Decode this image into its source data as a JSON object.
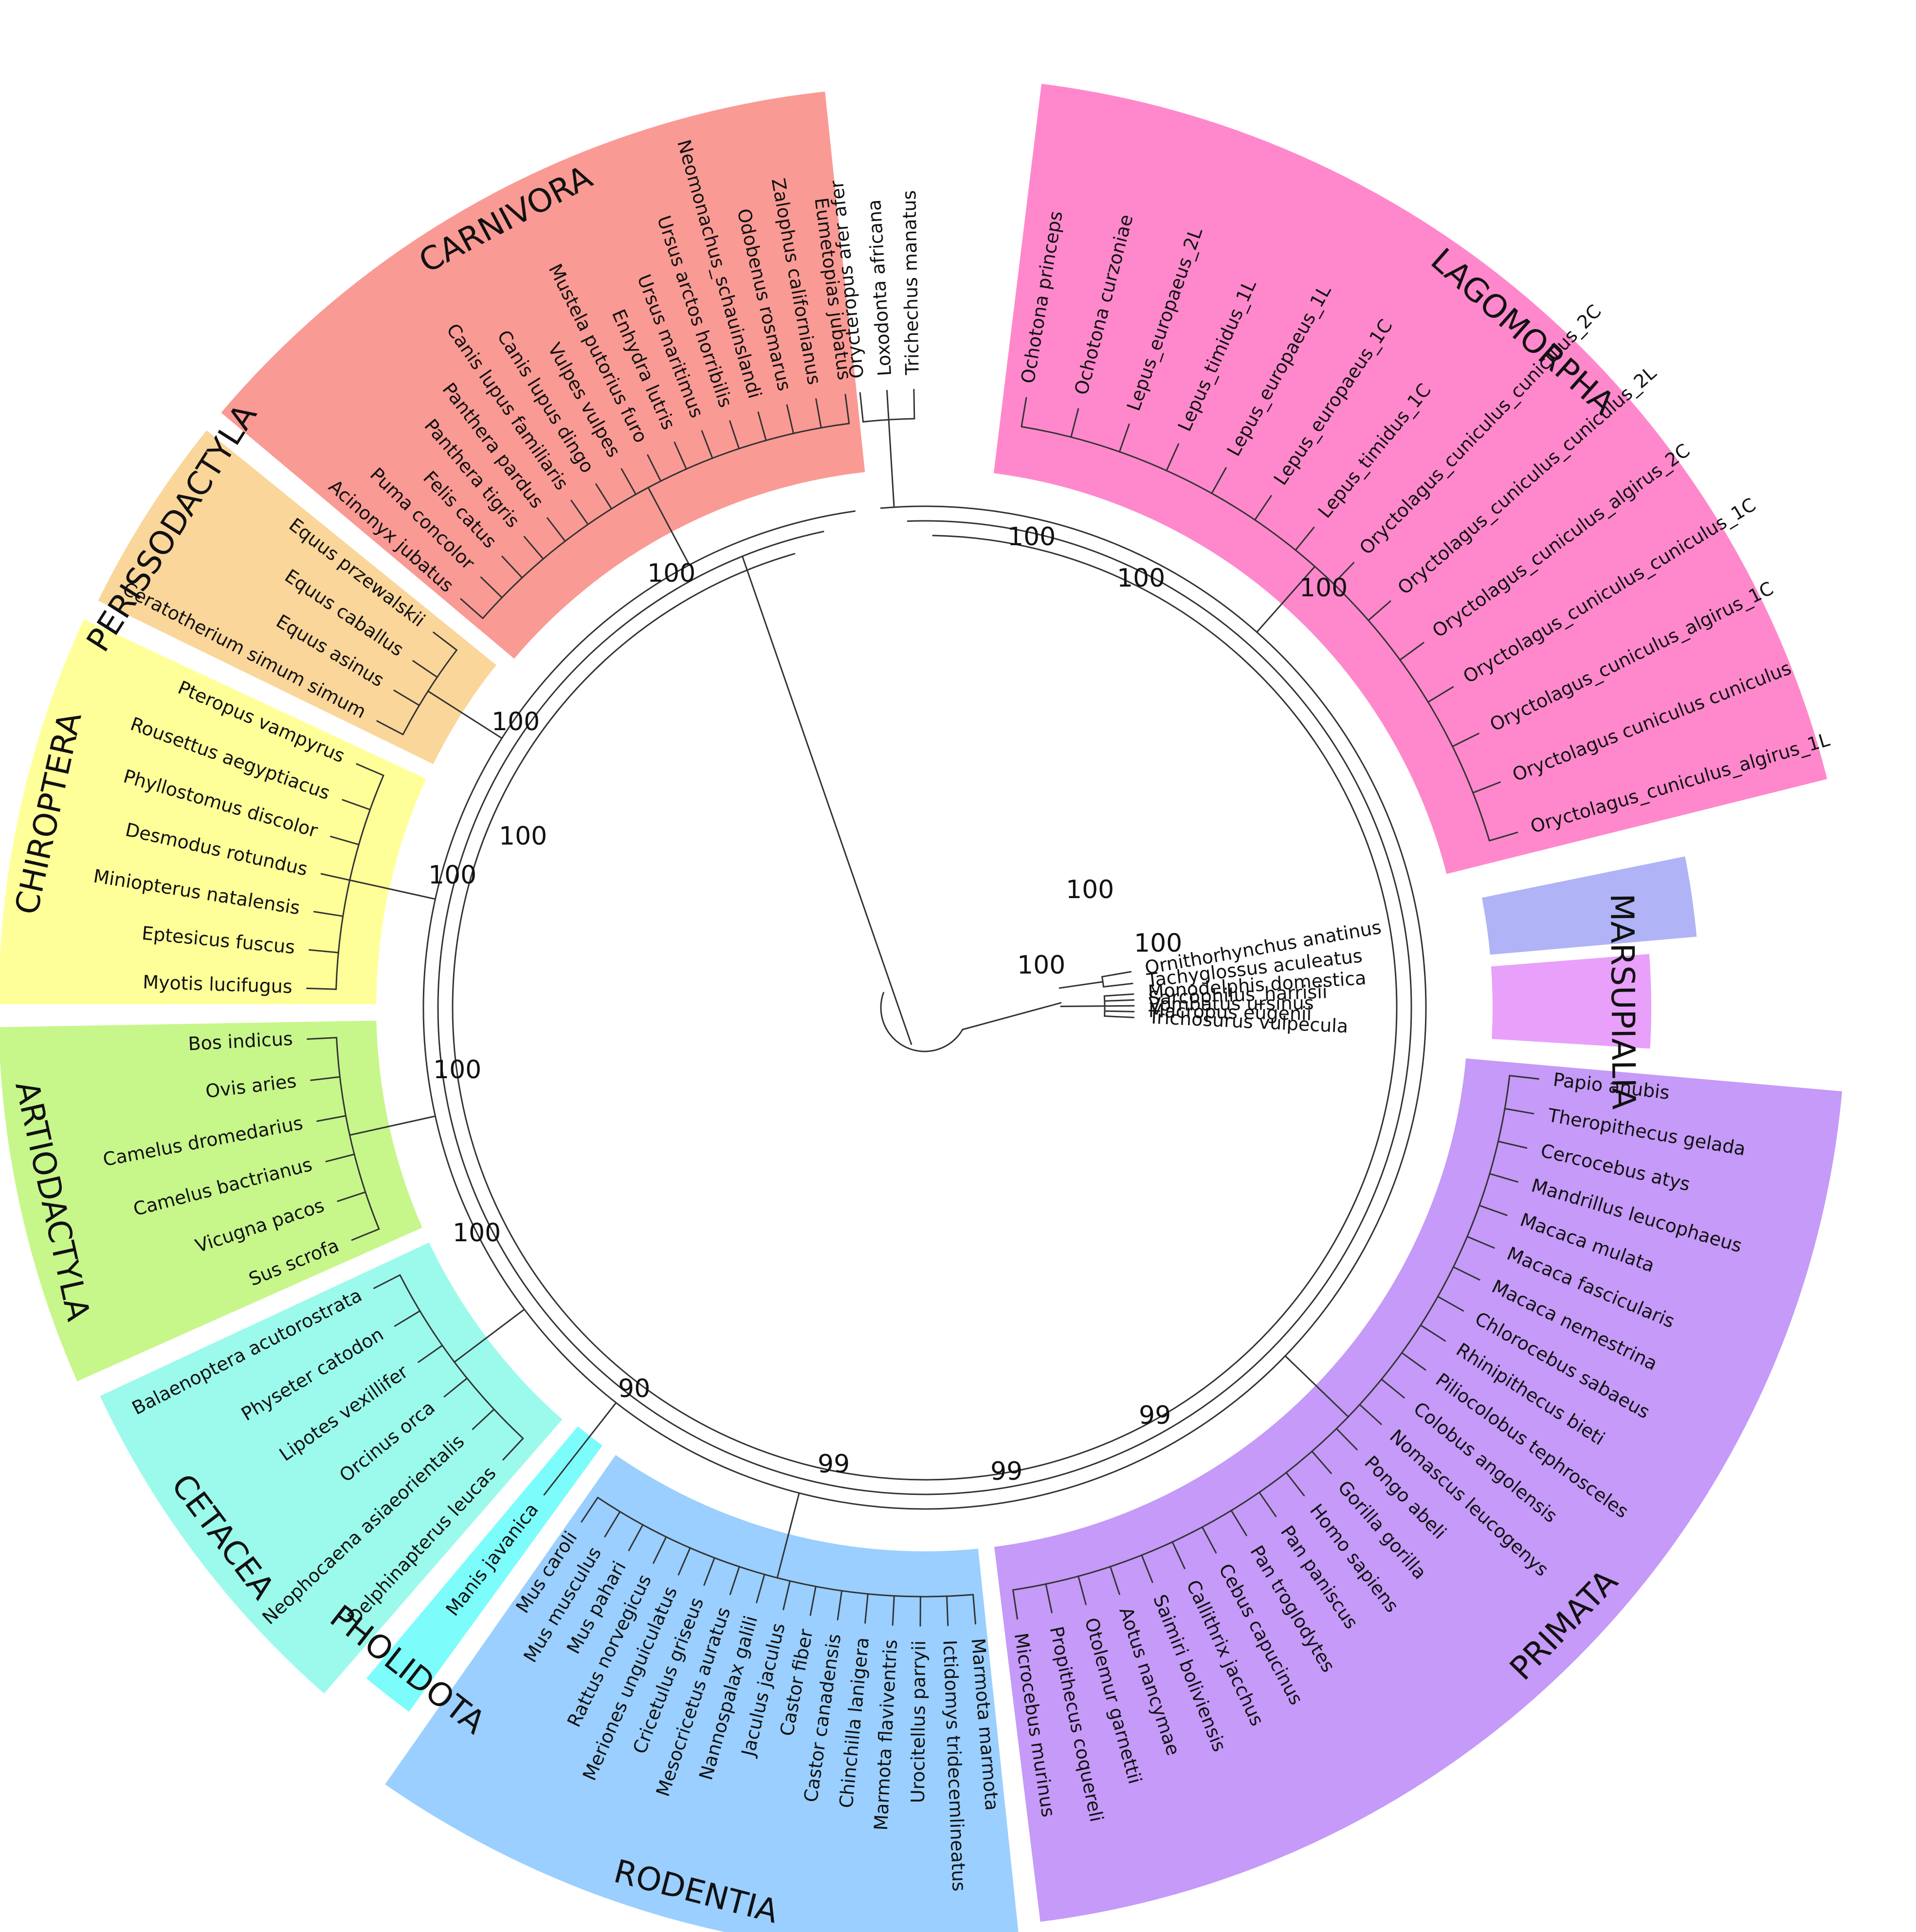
{
  "tree": {
    "colors": {
      "LAGOMORPHA": "#ff88cc",
      "CARNIVORA": "#fa9a94",
      "PERISSODACTYLA": "#fad69a",
      "CHIROPTERA": "#feff99",
      "ARTIODACTYLA": "#c7f68a",
      "CETACEA": "#9bfaeb",
      "PHOLIDOTA": "#7cfdfc",
      "RODENTIA": "#9acfff",
      "PRIMATA": "#c59af8",
      "MARSUPIALIA": "#e8a0fa",
      "MONOTREMES": "#b0b3f6"
    },
    "clades": [
      {
        "name": "LAGOMORPHA",
        "color_key": "LAGOMORPHA"
      },
      {
        "name": "",
        "color_key": "MONOTREMES"
      },
      {
        "name": "MARSUPIALIA",
        "color_key": "MARSUPIALIA"
      },
      {
        "name": "PRIMATA",
        "color_key": "PRIMATA"
      },
      {
        "name": "RODENTIA",
        "color_key": "RODENTIA"
      },
      {
        "name": "PHOLIDOTA",
        "color_key": "PHOLIDOTA"
      },
      {
        "name": "CETACEA",
        "color_key": "CETACEA"
      },
      {
        "name": "ARTIODACTYLA",
        "color_key": "ARTIODACTYLA"
      },
      {
        "name": "CHIROPTERA",
        "color_key": "CHIROPTERA"
      },
      {
        "name": "PERISSODACTYLA",
        "color_key": "PERISSODACTYLA"
      },
      {
        "name": "CARNIVORA",
        "color_key": "CARNIVORA"
      }
    ],
    "leaves": {
      "lagomorpha": [
        "Ochotona princeps",
        "Ochotona curzoniae",
        "Lepus_europaeus_2L",
        "Lepus_timidus_1L",
        "Lepus_europaeus_1L",
        "Lepus_europaeus_1C",
        "Lepus_timidus_1C",
        "Oryctolagus_cuniculus_cuniculus_2C",
        "Oryctolagus_cuniculus_cuniculus_2L",
        "Oryctolagus_cuniculus_algirus_2C",
        "Oryctolagus_cuniculus_cuniculus_1C",
        "Oryctolagus_cuniculus_algirus_1C",
        "Oryctolagus cuniculus cuniculus",
        "Oryctolagus_cuniculus_algirus_1L"
      ],
      "monotremes": [
        "Ornithorhynchus anatinus",
        "Tachyglossus aculeatus"
      ],
      "marsupialia": [
        "Monodelphis domestica",
        "Sarcophilus_harrisii",
        "Vombatus ursinus",
        "Macropus eugenii",
        "Trichosurus vulpecula"
      ],
      "primata": [
        "Papio anubis",
        "Theropithecus gelada",
        "Cercocebus atys",
        "Mandrillus leucophaeus",
        "Macaca mulata",
        "Macaca fascicularis",
        "Macaca nemestrina",
        "Chlorocebus sabaeus",
        "Rhinipithecus bieti",
        "Piliocolobus tephrosceles",
        "Colobus angolensis",
        "Nomascus leucogenys",
        "Pongo abeli",
        "Gorilla gorilla",
        "Homo sapiens",
        "Pan paniscus",
        "Pan troglodytes",
        "Cebus capucinus",
        "Callithrix jacchus",
        "Saimiri boliviensis",
        "Aotus nancymae",
        "Otolemur garnettii",
        "Propithecus coquereli",
        "Microcebus murinus"
      ],
      "rodentia": [
        "Marmota marmota",
        "Ictidomys tridecemlineatus",
        "Urocitellus parryii",
        "Marmota flaviventris",
        "Chinchilla lanigera",
        "Castor canadensis",
        "Castor fiber",
        "Jaculus jaculus",
        "Nannospalax galili",
        "Mesocricetus auratus",
        "Cricetulus griseus",
        "Meriones unguiculatus",
        "Rattus norvegicus",
        "Mus pahari",
        "Mus musculus",
        "Mus caroli"
      ],
      "pholidota": [
        "Manis javanica"
      ],
      "cetacea": [
        "Delphinapterus leucas",
        "Neophocaena asiaeorientalis",
        "Orcinus orca",
        "Lipotes vexillifer",
        "Physeter catodon",
        "Balaenoptera acutorostrata"
      ],
      "artiodactyla": [
        "Sus scrofa",
        "Vicugna pacos",
        "Camelus bactrianus",
        "Camelus dromedarius",
        "Ovis aries",
        "Bos indicus"
      ],
      "chiroptera": [
        "Myotis lucifugus",
        "Eptesicus fuscus",
        "Miniopterus natalensis",
        "Desmodus rotundus",
        "Phyllostomus discolor",
        "Rousettus aegyptiacus",
        "Pteropus vampyrus"
      ],
      "perissodactyla": [
        "Ceratotherium simum simum",
        "Equus asinus",
        "Equus caballus",
        "Equus przewalskii"
      ],
      "carnivora": [
        "Acinonyx jubatus",
        "Puma concolor",
        "Felis catus",
        "Panthera tigris",
        "Panthera pardus",
        "Canis lupus familiaris",
        "Canis lupus dingo",
        "Vulpes vulpes",
        "Mustela putorius furo",
        "Enhydra lutris",
        "Ursus maritimus",
        "Ursus arctos horribilis",
        "Neomonachus_schauinslandi",
        "Odobenus rosmarus",
        "Zalophus californianus",
        "Eumetopias jubatus"
      ],
      "afrotheria": [
        "Orycteropus afer afer",
        "Loxodonta africana",
        "Trichechus manatus"
      ]
    },
    "support_values": [
      "100",
      "100",
      "100",
      "100",
      "100",
      "100",
      "100",
      "100",
      "100",
      "100",
      "100",
      "100",
      "90",
      "99",
      "99",
      "99"
    ]
  }
}
